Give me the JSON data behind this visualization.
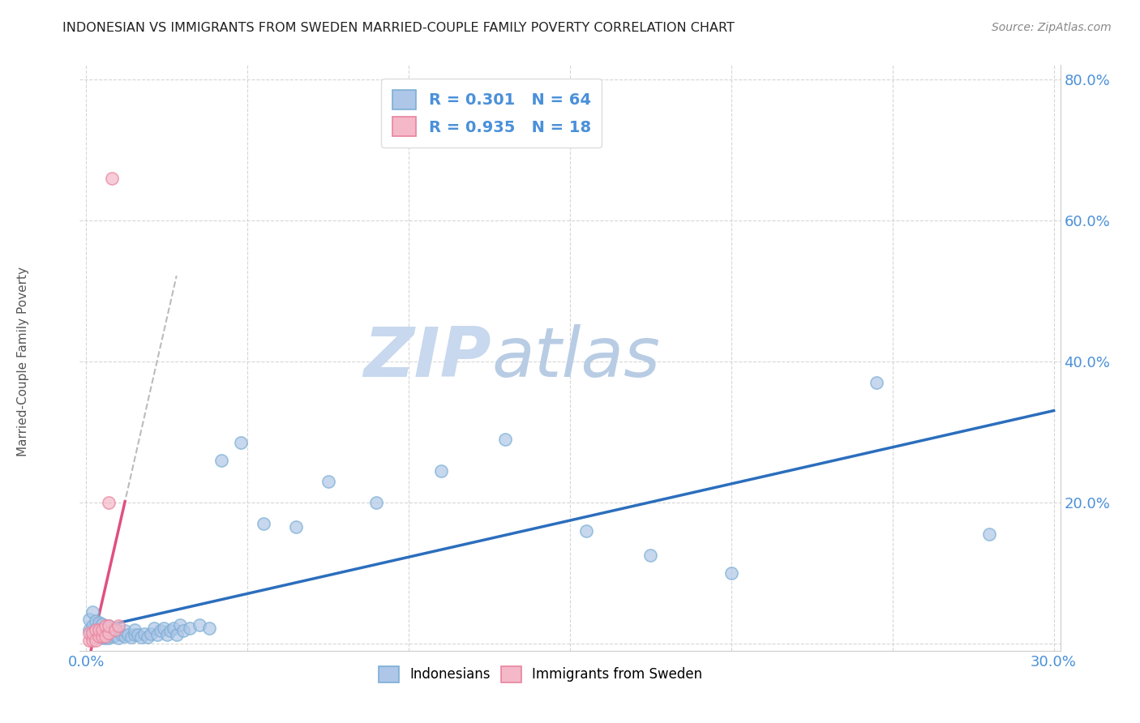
{
  "title": "INDONESIAN VS IMMIGRANTS FROM SWEDEN MARRIED-COUPLE FAMILY POVERTY CORRELATION CHART",
  "source": "Source: ZipAtlas.com",
  "ylabel": "Married-Couple Family Poverty",
  "xlim": [
    -0.002,
    0.302
  ],
  "ylim": [
    -0.01,
    0.82
  ],
  "xticks": [
    0.0,
    0.05,
    0.1,
    0.15,
    0.2,
    0.25,
    0.3
  ],
  "yticks": [
    0.0,
    0.2,
    0.4,
    0.6,
    0.8
  ],
  "xtick_labels": [
    "0.0%",
    "",
    "",
    "",
    "",
    "",
    "30.0%"
  ],
  "ytick_labels": [
    "",
    "20.0%",
    "40.0%",
    "60.0%",
    "80.0%"
  ],
  "blue_scatter_color": "#aec6e8",
  "blue_scatter_edge": "#7bafd4",
  "pink_scatter_color": "#f4b8c8",
  "pink_scatter_edge": "#e8849e",
  "blue_line_color": "#2b6ebd",
  "pink_line_color": "#e05080",
  "pink_dashed_color": "#bbbbbb",
  "legend_R1": "0.301",
  "legend_N1": "64",
  "legend_R2": "0.935",
  "legend_N2": "18",
  "tick_color": "#4a90d9",
  "grid_color": "#cccccc",
  "indonesians_x": [
    0.001,
    0.001,
    0.002,
    0.002,
    0.002,
    0.003,
    0.003,
    0.003,
    0.004,
    0.004,
    0.004,
    0.005,
    0.005,
    0.005,
    0.006,
    0.006,
    0.006,
    0.007,
    0.007,
    0.007,
    0.008,
    0.008,
    0.009,
    0.009,
    0.01,
    0.01,
    0.011,
    0.012,
    0.012,
    0.013,
    0.014,
    0.015,
    0.015,
    0.016,
    0.017,
    0.018,
    0.019,
    0.02,
    0.021,
    0.022,
    0.023,
    0.024,
    0.025,
    0.026,
    0.027,
    0.028,
    0.029,
    0.03,
    0.032,
    0.035,
    0.038,
    0.042,
    0.048,
    0.055,
    0.065,
    0.075,
    0.09,
    0.11,
    0.13,
    0.155,
    0.175,
    0.2,
    0.245,
    0.28
  ],
  "indonesians_y": [
    0.02,
    0.035,
    0.01,
    0.025,
    0.045,
    0.008,
    0.018,
    0.032,
    0.01,
    0.02,
    0.03,
    0.008,
    0.018,
    0.028,
    0.008,
    0.015,
    0.022,
    0.008,
    0.015,
    0.025,
    0.01,
    0.02,
    0.012,
    0.022,
    0.008,
    0.018,
    0.013,
    0.01,
    0.018,
    0.013,
    0.009,
    0.013,
    0.02,
    0.013,
    0.009,
    0.014,
    0.009,
    0.014,
    0.022,
    0.013,
    0.018,
    0.022,
    0.013,
    0.018,
    0.022,
    0.013,
    0.026,
    0.018,
    0.022,
    0.026,
    0.022,
    0.26,
    0.285,
    0.17,
    0.165,
    0.23,
    0.2,
    0.245,
    0.29,
    0.16,
    0.125,
    0.1,
    0.37,
    0.155
  ],
  "sweden_x": [
    0.001,
    0.001,
    0.002,
    0.002,
    0.003,
    0.003,
    0.004,
    0.004,
    0.005,
    0.005,
    0.006,
    0.006,
    0.007,
    0.007,
    0.007,
    0.008,
    0.009,
    0.01
  ],
  "sweden_y": [
    0.005,
    0.015,
    0.005,
    0.015,
    0.005,
    0.02,
    0.01,
    0.02,
    0.01,
    0.02,
    0.01,
    0.025,
    0.015,
    0.025,
    0.2,
    0.66,
    0.02,
    0.025
  ]
}
